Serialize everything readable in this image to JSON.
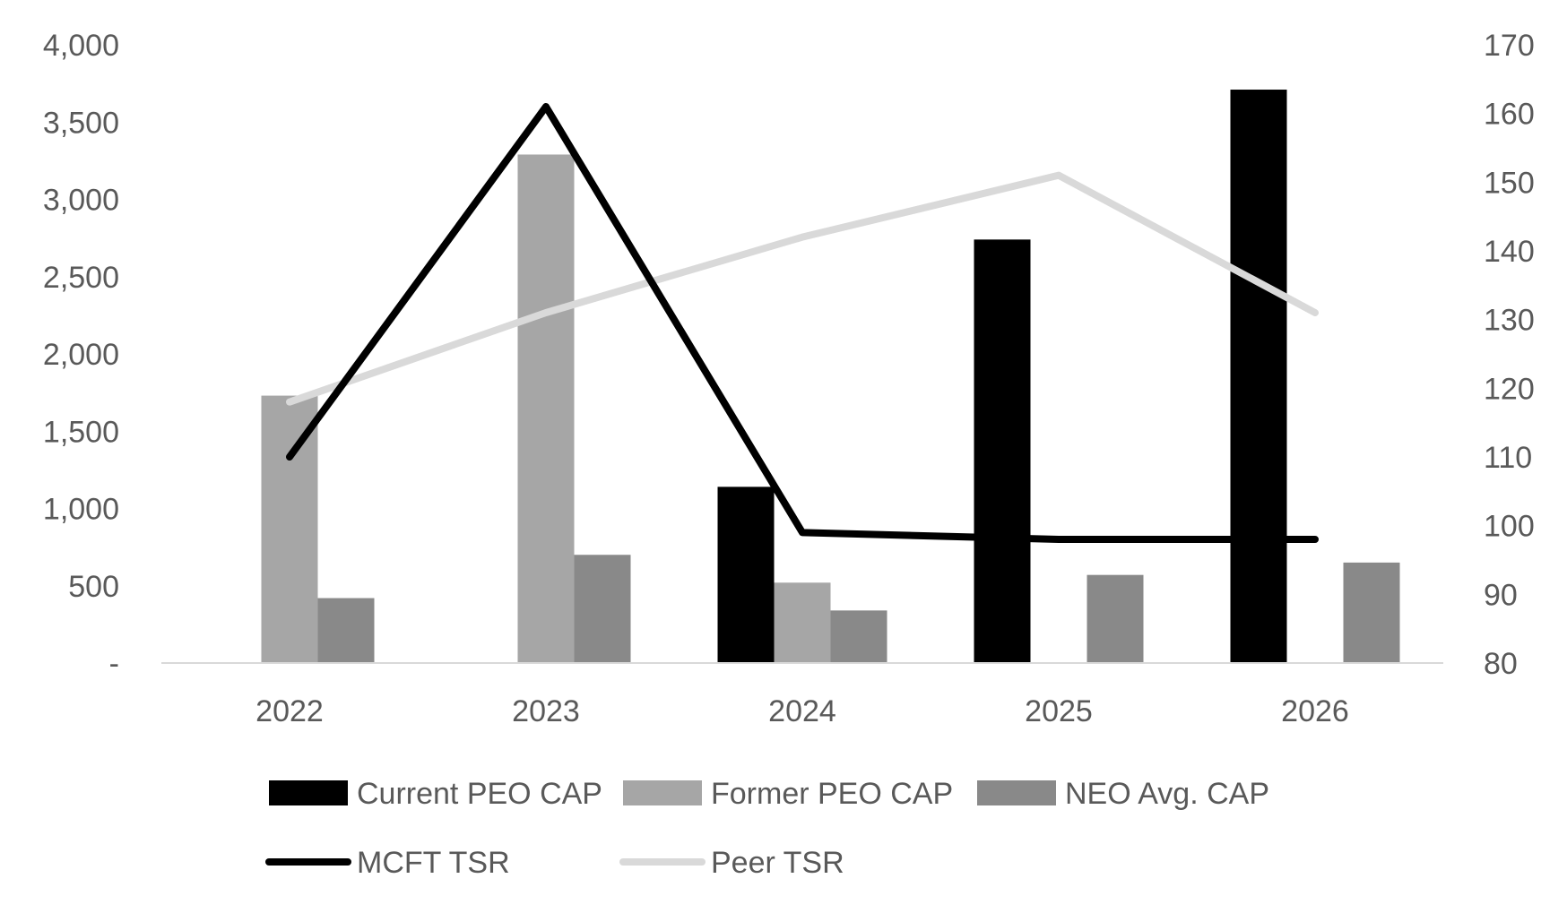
{
  "chart_data": {
    "type": "bar",
    "categories": [
      "2022",
      "2023",
      "2024",
      "2025",
      "2026"
    ],
    "bar_series": [
      {
        "name": "Current PEO CAP",
        "color": "#000000",
        "values": [
          0,
          0,
          1140,
          2740,
          3710
        ]
      },
      {
        "name": "Former PEO CAP",
        "color": "#a6a6a6",
        "values": [
          1730,
          3290,
          520,
          0,
          0
        ]
      },
      {
        "name": "NEO Avg. CAP",
        "color": "#898989",
        "values": [
          420,
          700,
          340,
          570,
          650
        ]
      }
    ],
    "line_series": [
      {
        "name": "MCFT TSR",
        "color": "#000000",
        "axis": "right",
        "values": [
          110,
          161,
          99,
          98,
          98
        ]
      },
      {
        "name": "Peer TSR",
        "color": "#d9d9d9",
        "axis": "right",
        "values": [
          118,
          131,
          142,
          151,
          131
        ]
      }
    ],
    "left_axis": {
      "ylim": [
        0,
        4000
      ],
      "ticks": [
        {
          "value": 0,
          "label": "-"
        },
        {
          "value": 500,
          "label": "500"
        },
        {
          "value": 1000,
          "label": "1,000"
        },
        {
          "value": 1500,
          "label": "1,500"
        },
        {
          "value": 2000,
          "label": "2,000"
        },
        {
          "value": 2500,
          "label": "2,500"
        },
        {
          "value": 3000,
          "label": "3,000"
        },
        {
          "value": 3500,
          "label": "3,500"
        },
        {
          "value": 4000,
          "label": "4,000"
        }
      ]
    },
    "right_axis": {
      "ylim": [
        80,
        170
      ],
      "ticks": [
        {
          "value": 80,
          "label": "80"
        },
        {
          "value": 90,
          "label": "90"
        },
        {
          "value": 100,
          "label": "100"
        },
        {
          "value": 110,
          "label": "110"
        },
        {
          "value": 120,
          "label": "120"
        },
        {
          "value": 130,
          "label": "130"
        },
        {
          "value": 140,
          "label": "140"
        },
        {
          "value": 150,
          "label": "150"
        },
        {
          "value": 160,
          "label": "160"
        },
        {
          "value": 170,
          "label": "170"
        }
      ]
    },
    "grid": false,
    "legend_position": "bottom"
  }
}
